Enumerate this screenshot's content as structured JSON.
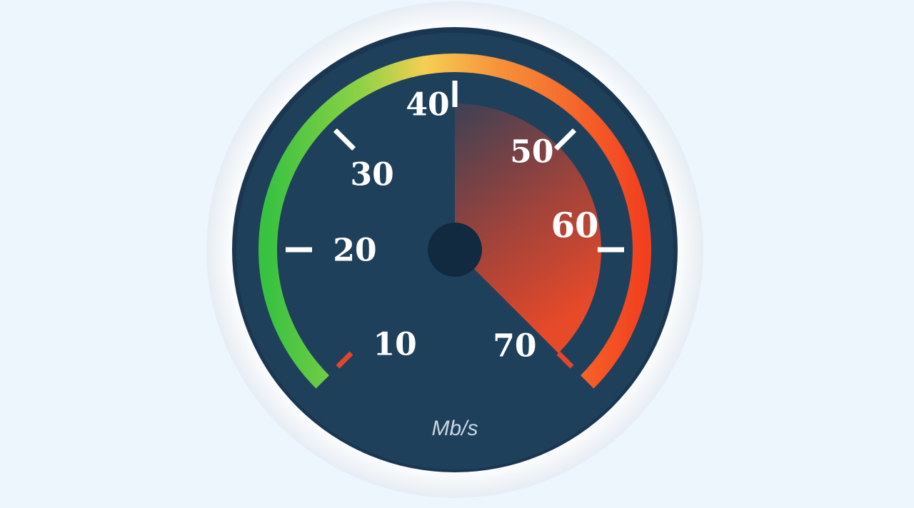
{
  "gauge": {
    "unit": "Mb/s",
    "scale_min": 10,
    "scale_max": 70,
    "value": 70,
    "sector_start_value": 40,
    "ticks": [
      {
        "value": 10,
        "label": "10"
      },
      {
        "value": 20,
        "label": "20"
      },
      {
        "value": 30,
        "label": "30"
      },
      {
        "value": 40,
        "label": "40"
      },
      {
        "value": 50,
        "label": "50"
      },
      {
        "value": 60,
        "label": "60"
      },
      {
        "value": 70,
        "label": "70"
      }
    ],
    "colors": {
      "page_background": "#eef6fd",
      "outer_ring": "#ffffff",
      "dial_face": "#1f405b",
      "arc_green": "#39c241",
      "arc_yellow": "#f5cf52",
      "arc_orange": "#f7913a",
      "arc_red": "#f2401f",
      "needle_sector": "#e5452a",
      "tick_white": "#ffffff",
      "tick_red": "#e5452a",
      "hub": "#112a3f"
    }
  }
}
